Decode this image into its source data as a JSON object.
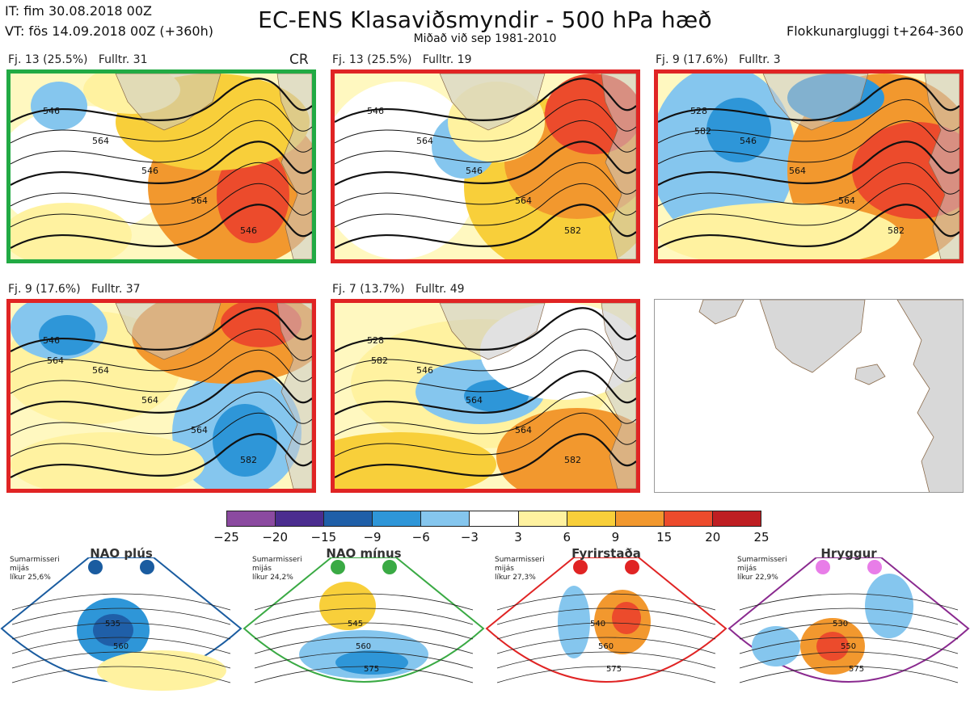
{
  "header": {
    "it": "IT: fim 30.08.2018 00Z",
    "vt": "VT: fös 14.09.2018 00Z  (+360h)",
    "title": "EC-ENS Klasaviðsmyndir - 500 hPa hæð",
    "subtitle": "Miðað við sep 1981-2010",
    "window": "Flokkunargluggi t+264-360"
  },
  "panels": [
    {
      "label": "Fj. 13 (25.5%)   Fulltr. 31",
      "tag": "CR",
      "border": "#22aa44",
      "contours": [
        "546",
        "564",
        "546",
        "564",
        "546"
      ]
    },
    {
      "label": "Fj. 13 (25.5%)   Fulltr. 19",
      "tag": "",
      "border": "#e02424",
      "contours": [
        "546",
        "564",
        "546",
        "564",
        "582"
      ]
    },
    {
      "label": "Fj. 9 (17.6%)   Fulltr. 3",
      "tag": "",
      "border": "#e02424",
      "contours": [
        "528",
        "546",
        "564",
        "564",
        "582",
        "582"
      ]
    },
    {
      "label": "Fj. 9 (17.6%)   Fulltr. 37",
      "tag": "",
      "border": "#e02424",
      "contours": [
        "546",
        "564",
        "564",
        "564",
        "582",
        "564"
      ]
    },
    {
      "label": "Fj. 7 (13.7%)   Fulltr. 49",
      "tag": "",
      "border": "#e02424",
      "contours": [
        "528",
        "546",
        "564",
        "564",
        "582",
        "582"
      ]
    }
  ],
  "colorbar": {
    "colors": [
      "#8b4aa0",
      "#4b2d8f",
      "#1f5fa8",
      "#2e96d8",
      "#85c6ee",
      "#ffffff",
      "#fff2a0",
      "#f8cf3a",
      "#f2982e",
      "#ec4b2c",
      "#be1e22"
    ],
    "ticks": [
      "−25",
      "−20",
      "−15",
      "−9",
      "−6",
      "−3",
      "3",
      "6",
      "9",
      "15",
      "20",
      "25"
    ]
  },
  "regimes": [
    {
      "name": "NAO plús",
      "color": "#1a5ca0",
      "dot": "#1a5ca0",
      "text": [
        "Sumarmisseri",
        "mijás",
        "líkur 25,6%"
      ],
      "contours": [
        "535",
        "560"
      ]
    },
    {
      "name": "NAO mínus",
      "color": "#3aaa44",
      "dot": "#3aaa44",
      "text": [
        "Sumarmisseri",
        "mijás",
        "líkur 24,2%"
      ],
      "contours": [
        "545",
        "560",
        "575"
      ]
    },
    {
      "name": "Fyrirstaða",
      "color": "#e02424",
      "dot": "#e02424",
      "text": [
        "Sumarmisseri",
        "mijás",
        "líkur 27,3%"
      ],
      "contours": [
        "540",
        "560",
        "575"
      ]
    },
    {
      "name": "Hryggur",
      "color": "#8a2a8f",
      "dot": "#e87de8",
      "text": [
        "Sumarmisseri",
        "mijás",
        "líkur 22,9%"
      ],
      "contours": [
        "530",
        "550",
        "575"
      ]
    }
  ]
}
